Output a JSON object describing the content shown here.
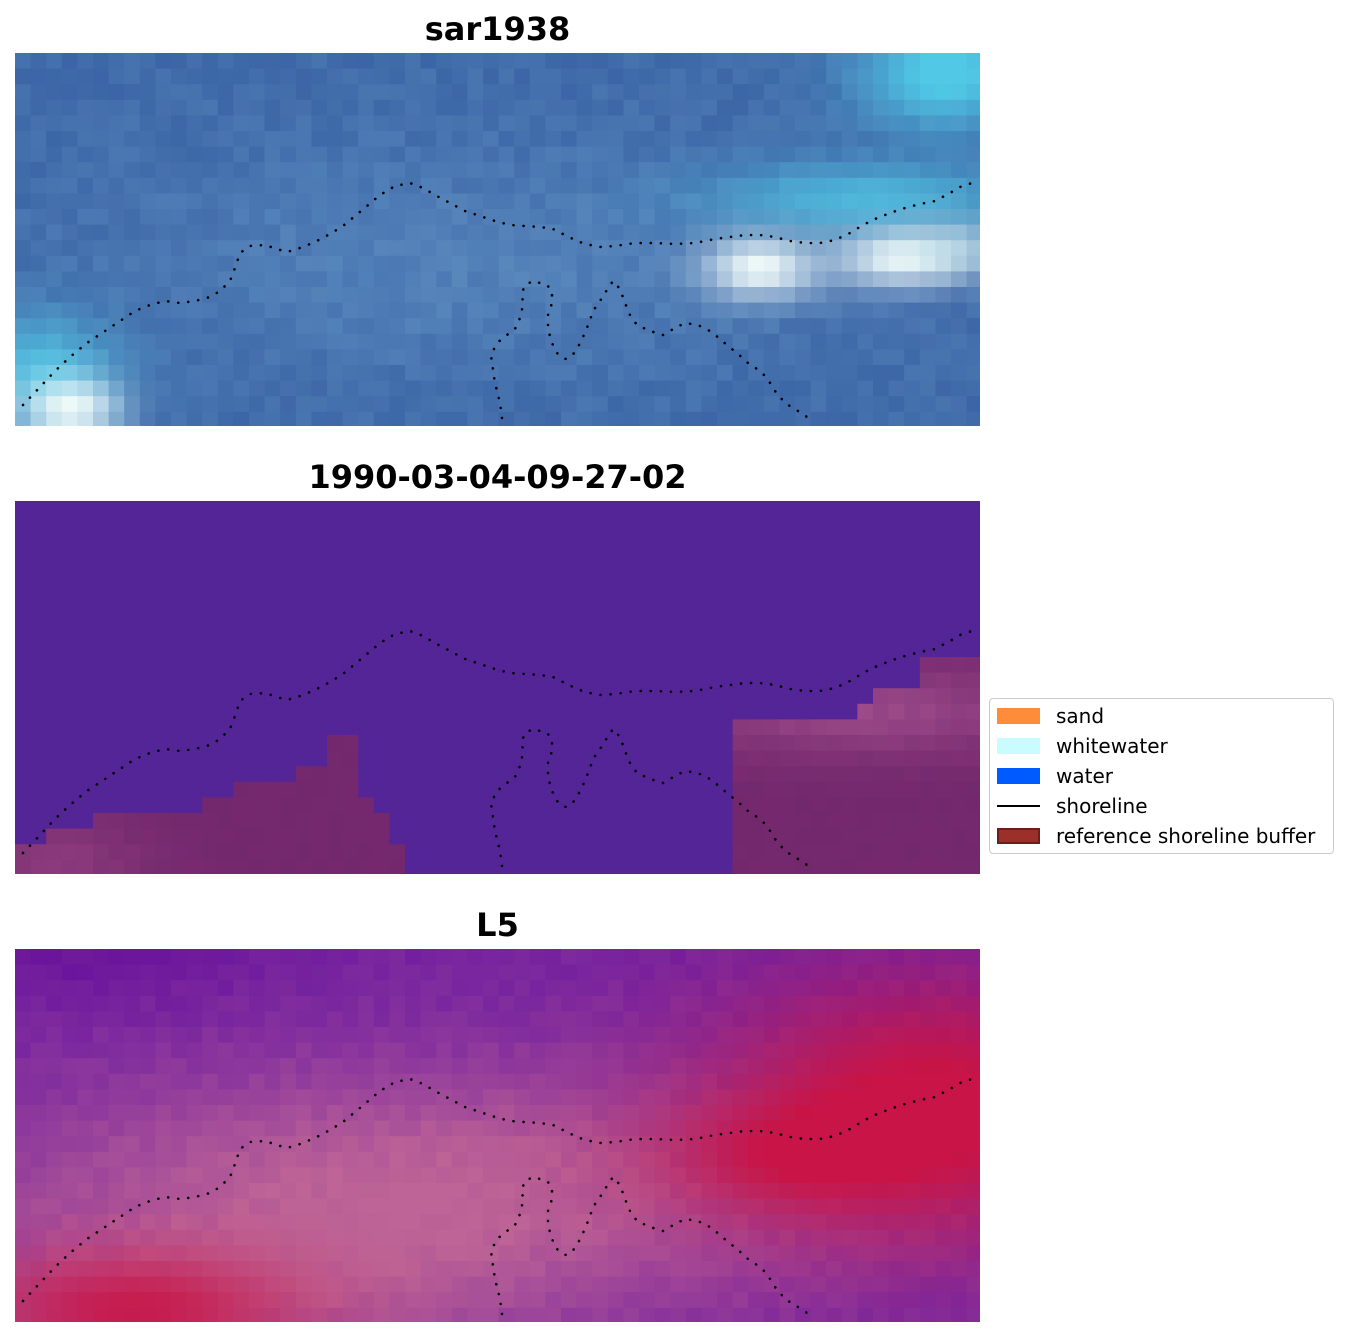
{
  "panels": [
    {
      "title": "sar1938",
      "kind": "sar"
    },
    {
      "title": "1990-03-04-09-27-02",
      "kind": "classification"
    },
    {
      "title": "L5",
      "kind": "index"
    }
  ],
  "legend": [
    {
      "label": "sand",
      "color": "#ff8c3a",
      "type": "patch"
    },
    {
      "label": "whitewater",
      "color": "#c8fcff",
      "type": "patch"
    },
    {
      "label": "water",
      "color": "#005bff",
      "type": "patch"
    },
    {
      "label": "shoreline",
      "color": "#000000",
      "type": "line"
    },
    {
      "label": "reference shoreline buffer",
      "color": "#9b2f2a",
      "type": "patch-edged"
    }
  ],
  "colors": {
    "background": "#ffffff",
    "sar_blue": "#3a68a8",
    "classification_water": "#542596",
    "buffer_overlay": "#7a2f6e",
    "index_purple": "#7221a0",
    "index_red": "#c4144a"
  }
}
